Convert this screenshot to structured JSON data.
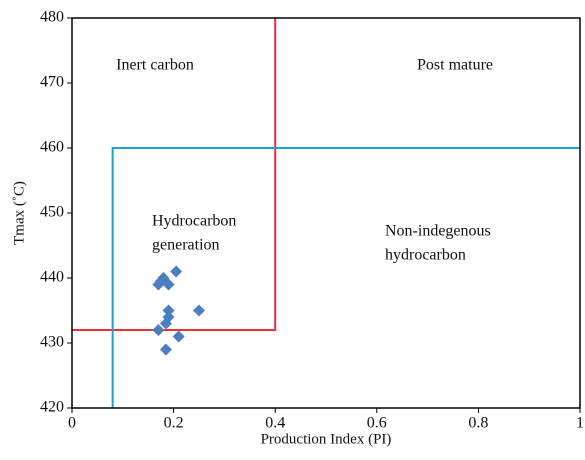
{
  "chart_data": {
    "type": "scatter",
    "xlabel": "Production Index (PI)",
    "ylabel": "Tmax (˚C)",
    "xlim": [
      0,
      1
    ],
    "xticks": [
      0,
      0.2,
      0.4,
      0.6,
      0.8,
      1
    ],
    "ylim": [
      420,
      480
    ],
    "yticks": [
      420,
      430,
      440,
      450,
      460,
      470,
      480
    ],
    "series": [
      {
        "color": "#4a7fc1",
        "x": [
          0.17,
          0.18,
          0.175,
          0.19,
          0.205,
          0.19,
          0.19,
          0.185,
          0.17,
          0.25,
          0.21,
          0.185
        ],
        "values": [
          439,
          440,
          439.5,
          439,
          441,
          435,
          434,
          433,
          432,
          435,
          431,
          429
        ]
      }
    ],
    "lines": [
      {
        "color": "#e8303a",
        "x": [
          0,
          0.4,
          0.4
        ],
        "values": [
          432,
          432,
          480
        ]
      },
      {
        "color": "#1aa3d9",
        "x": [
          0.08,
          0.08,
          1
        ],
        "values": [
          420,
          460,
          460
        ]
      }
    ],
    "annotations": [
      [
        "Inert carbon"
      ],
      [
        "Post mature"
      ],
      [
        "Hydrocarbon",
        "generation"
      ],
      [
        "Non-indegenous",
        "hydrocarbon"
      ]
    ]
  }
}
